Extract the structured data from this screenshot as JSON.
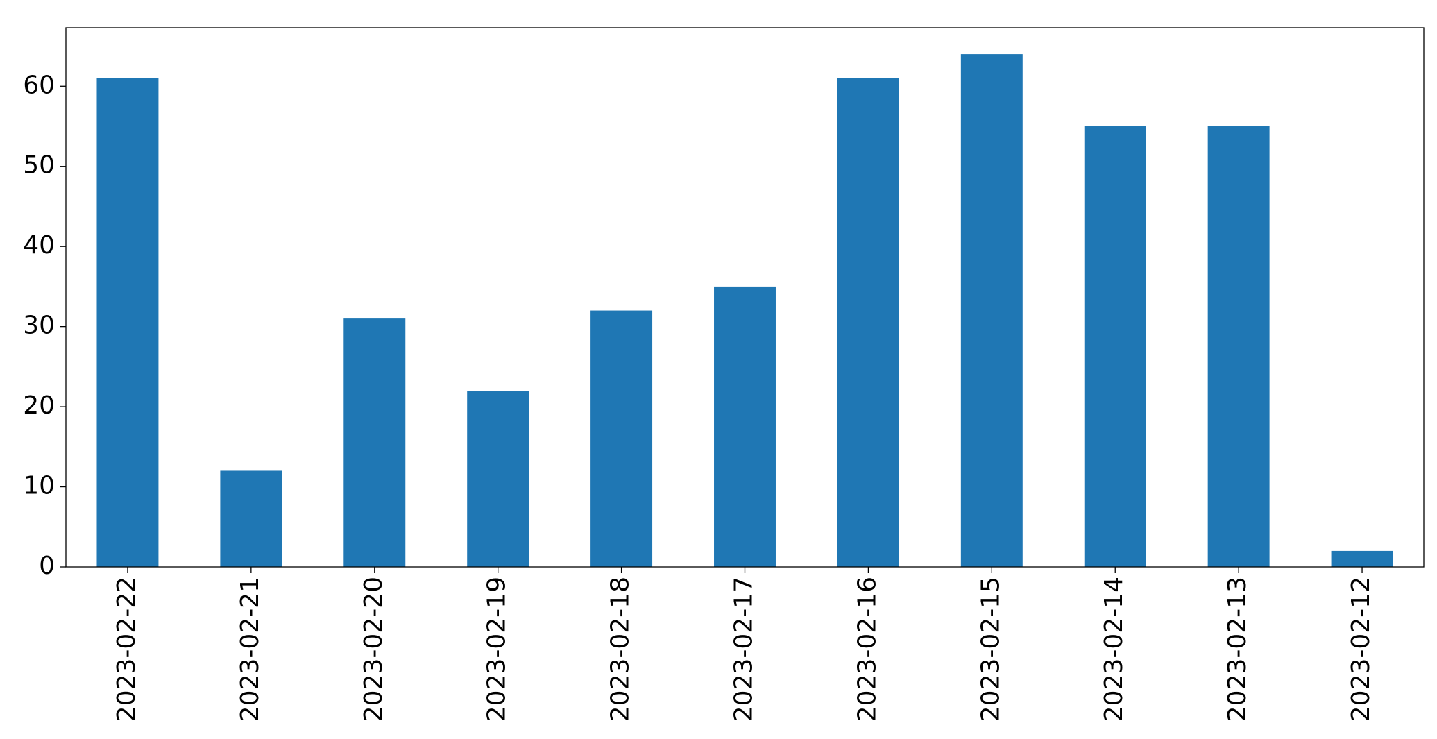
{
  "chart_data": {
    "type": "bar",
    "categories": [
      "2023-02-22",
      "2023-02-21",
      "2023-02-20",
      "2023-02-19",
      "2023-02-18",
      "2023-02-17",
      "2023-02-16",
      "2023-02-15",
      "2023-02-14",
      "2023-02-13",
      "2023-02-12"
    ],
    "values": [
      61,
      12,
      31,
      22,
      32,
      35,
      61,
      64,
      55,
      55,
      2
    ],
    "color": "#1f77b4",
    "ylim": [
      0,
      67.3
    ],
    "yticks": [
      0,
      10,
      20,
      30,
      40,
      50,
      60
    ],
    "grid": false
  }
}
